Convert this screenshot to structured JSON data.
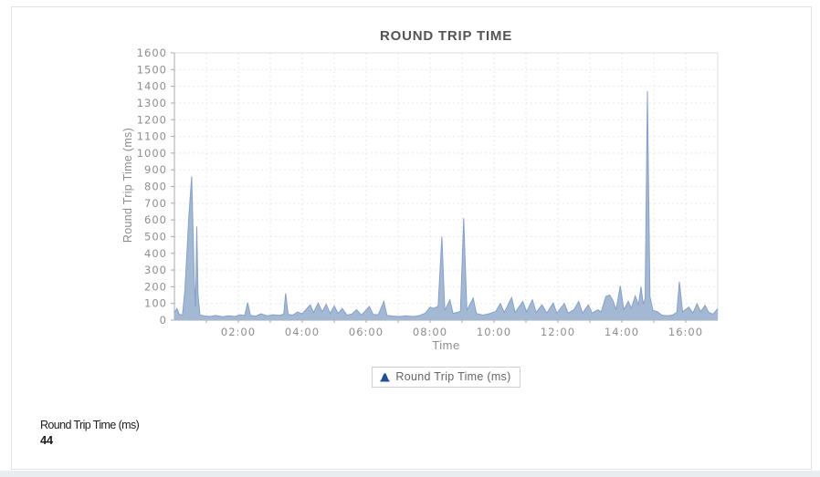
{
  "card": {
    "border_color": "#e2e2e2"
  },
  "chart_data": {
    "type": "area",
    "title": "ROUND TRIP TIME",
    "xlabel": "Time",
    "ylabel": "Round Trip Time (ms)",
    "legend_position": "bottom-center",
    "grid": "dashed",
    "colors": {
      "area_fill": "#a3b8d3",
      "area_stroke": "#86a1c7",
      "legend_marker": "#1f4e96",
      "axis_line": "#aaaaaa",
      "grid_line": "#e9e9e9",
      "tick_label": "#8e8e8e"
    },
    "x_axis": {
      "min": 0,
      "max": 17,
      "grid_step": 1,
      "tick_values": [
        2,
        4,
        6,
        8,
        10,
        12,
        14,
        16
      ],
      "tick_labels": [
        "02:00",
        "04:00",
        "06:00",
        "08:00",
        "10:00",
        "12:00",
        "14:00",
        "16:00"
      ]
    },
    "y_axis": {
      "min": 0,
      "max": 1600,
      "step": 100,
      "tick_labels": [
        "0",
        "100",
        "200",
        "300",
        "400",
        "500",
        "600",
        "700",
        "800",
        "900",
        "1000",
        "1100",
        "1200",
        "1300",
        "1400",
        "1500",
        "1600"
      ]
    },
    "series": [
      {
        "name": "Round Trip Time (ms)",
        "points": [
          [
            0.0,
            45
          ],
          [
            0.08,
            70
          ],
          [
            0.15,
            35
          ],
          [
            0.25,
            30
          ],
          [
            0.33,
            180
          ],
          [
            0.45,
            620
          ],
          [
            0.54,
            860
          ],
          [
            0.62,
            250
          ],
          [
            0.66,
            80
          ],
          [
            0.7,
            560
          ],
          [
            0.74,
            150
          ],
          [
            0.8,
            30
          ],
          [
            0.95,
            25
          ],
          [
            1.1,
            22
          ],
          [
            1.3,
            28
          ],
          [
            1.5,
            20
          ],
          [
            1.7,
            26
          ],
          [
            1.9,
            22
          ],
          [
            2.05,
            32
          ],
          [
            2.2,
            28
          ],
          [
            2.29,
            105
          ],
          [
            2.38,
            28
          ],
          [
            2.55,
            24
          ],
          [
            2.7,
            38
          ],
          [
            2.9,
            26
          ],
          [
            3.1,
            32
          ],
          [
            3.3,
            28
          ],
          [
            3.42,
            36
          ],
          [
            3.48,
            160
          ],
          [
            3.56,
            34
          ],
          [
            3.7,
            30
          ],
          [
            3.85,
            48
          ],
          [
            4.0,
            38
          ],
          [
            4.25,
            92
          ],
          [
            4.35,
            46
          ],
          [
            4.5,
            102
          ],
          [
            4.62,
            50
          ],
          [
            4.75,
            95
          ],
          [
            4.87,
            40
          ],
          [
            5.0,
            85
          ],
          [
            5.12,
            40
          ],
          [
            5.25,
            70
          ],
          [
            5.4,
            30
          ],
          [
            5.55,
            36
          ],
          [
            5.7,
            62
          ],
          [
            5.85,
            30
          ],
          [
            6.1,
            82
          ],
          [
            6.22,
            34
          ],
          [
            6.38,
            32
          ],
          [
            6.55,
            112
          ],
          [
            6.65,
            28
          ],
          [
            6.85,
            24
          ],
          [
            7.05,
            22
          ],
          [
            7.25,
            26
          ],
          [
            7.45,
            22
          ],
          [
            7.65,
            26
          ],
          [
            7.85,
            42
          ],
          [
            8.0,
            78
          ],
          [
            8.12,
            70
          ],
          [
            8.25,
            85
          ],
          [
            8.37,
            500
          ],
          [
            8.46,
            58
          ],
          [
            8.62,
            122
          ],
          [
            8.72,
            40
          ],
          [
            8.95,
            52
          ],
          [
            9.05,
            610
          ],
          [
            9.15,
            58
          ],
          [
            9.35,
            132
          ],
          [
            9.45,
            40
          ],
          [
            9.65,
            30
          ],
          [
            9.85,
            38
          ],
          [
            10.05,
            52
          ],
          [
            10.2,
            100
          ],
          [
            10.32,
            46
          ],
          [
            10.55,
            135
          ],
          [
            10.66,
            46
          ],
          [
            10.9,
            112
          ],
          [
            11.02,
            50
          ],
          [
            11.2,
            122
          ],
          [
            11.32,
            46
          ],
          [
            11.5,
            92
          ],
          [
            11.65,
            42
          ],
          [
            11.85,
            102
          ],
          [
            11.97,
            42
          ],
          [
            12.2,
            100
          ],
          [
            12.32,
            42
          ],
          [
            12.5,
            62
          ],
          [
            12.65,
            112
          ],
          [
            12.77,
            42
          ],
          [
            12.95,
            92
          ],
          [
            13.07,
            42
          ],
          [
            13.25,
            62
          ],
          [
            13.35,
            48
          ],
          [
            13.5,
            142
          ],
          [
            13.62,
            150
          ],
          [
            13.72,
            118
          ],
          [
            13.82,
            62
          ],
          [
            13.95,
            205
          ],
          [
            14.06,
            62
          ],
          [
            14.2,
            112
          ],
          [
            14.3,
            72
          ],
          [
            14.42,
            145
          ],
          [
            14.52,
            92
          ],
          [
            14.6,
            200
          ],
          [
            14.67,
            95
          ],
          [
            14.73,
            130
          ],
          [
            14.8,
            1370
          ],
          [
            14.88,
            140
          ],
          [
            14.97,
            58
          ],
          [
            15.1,
            52
          ],
          [
            15.25,
            30
          ],
          [
            15.42,
            26
          ],
          [
            15.58,
            30
          ],
          [
            15.72,
            46
          ],
          [
            15.8,
            230
          ],
          [
            15.9,
            50
          ],
          [
            16.1,
            78
          ],
          [
            16.22,
            42
          ],
          [
            16.35,
            98
          ],
          [
            16.47,
            50
          ],
          [
            16.6,
            88
          ],
          [
            16.72,
            46
          ],
          [
            16.85,
            36
          ],
          [
            17.0,
            68
          ]
        ]
      }
    ]
  },
  "footer": {
    "metric_label": "Round Trip Time (ms)",
    "metric_value": "44"
  }
}
